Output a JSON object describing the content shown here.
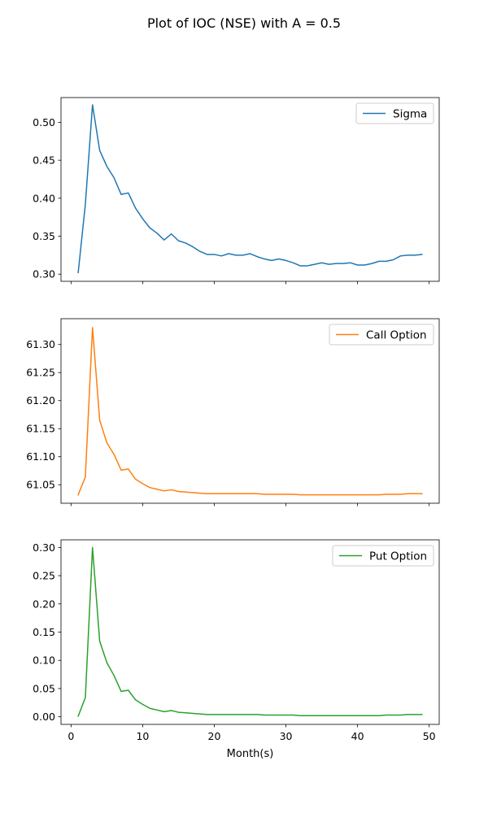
{
  "figure": {
    "title": "Plot of IOC (NSE) with A = 0.5",
    "xlabel": "Month(s)"
  },
  "chart_data": [
    {
      "type": "line",
      "title": "",
      "xlabel": "",
      "ylabel": "",
      "xlim": [
        -1.4,
        51.4
      ],
      "ylim": [
        0.2906,
        0.5326
      ],
      "xticks": [
        0,
        10,
        20,
        30,
        40,
        50
      ],
      "show_xtick_labels": false,
      "yticks": [
        0.3,
        0.35,
        0.4,
        0.45,
        0.5
      ],
      "ytick_labels": [
        "0.30",
        "0.35",
        "0.40",
        "0.45",
        "0.50"
      ],
      "grid": false,
      "legend": "top-right",
      "series": [
        {
          "name": "Sigma",
          "color": "#1f77b4",
          "x": [
            1,
            2,
            3,
            4,
            5,
            6,
            7,
            8,
            9,
            10,
            11,
            12,
            13,
            14,
            15,
            16,
            17,
            18,
            19,
            20,
            21,
            22,
            23,
            24,
            25,
            26,
            27,
            28,
            29,
            30,
            31,
            32,
            33,
            34,
            35,
            36,
            37,
            38,
            39,
            40,
            41,
            42,
            43,
            44,
            45,
            46,
            47,
            48,
            49
          ],
          "values": [
            0.302,
            0.392,
            0.523,
            0.463,
            0.442,
            0.427,
            0.405,
            0.407,
            0.387,
            0.373,
            0.361,
            0.354,
            0.345,
            0.353,
            0.344,
            0.341,
            0.336,
            0.33,
            0.326,
            0.326,
            0.324,
            0.327,
            0.325,
            0.325,
            0.327,
            0.323,
            0.32,
            0.318,
            0.32,
            0.318,
            0.315,
            0.311,
            0.311,
            0.313,
            0.315,
            0.313,
            0.314,
            0.314,
            0.315,
            0.312,
            0.312,
            0.314,
            0.317,
            0.317,
            0.319,
            0.324,
            0.325,
            0.325,
            0.326
          ]
        }
      ]
    },
    {
      "type": "line",
      "title": "",
      "xlabel": "",
      "ylabel": "",
      "xlim": [
        -1.4,
        51.4
      ],
      "ylim": [
        61.017,
        61.346
      ],
      "xticks": [
        0,
        10,
        20,
        30,
        40,
        50
      ],
      "show_xtick_labels": false,
      "yticks": [
        61.05,
        61.1,
        61.15,
        61.2,
        61.25,
        61.3
      ],
      "ytick_labels": [
        "61.05",
        "61.10",
        "61.15",
        "61.20",
        "61.25",
        "61.30"
      ],
      "grid": false,
      "legend": "top-right",
      "series": [
        {
          "name": "Call Option",
          "color": "#ff7f0e",
          "x": [
            1,
            2,
            3,
            4,
            5,
            6,
            7,
            8,
            9,
            10,
            11,
            12,
            13,
            14,
            15,
            16,
            17,
            18,
            19,
            20,
            21,
            22,
            23,
            24,
            25,
            26,
            27,
            28,
            29,
            30,
            31,
            32,
            33,
            34,
            35,
            36,
            37,
            38,
            39,
            40,
            41,
            42,
            43,
            44,
            45,
            46,
            47,
            48,
            49
          ],
          "values": [
            61.032,
            61.064,
            61.33,
            61.165,
            61.125,
            61.104,
            61.076,
            61.078,
            61.06,
            61.052,
            61.045,
            61.042,
            61.039,
            61.041,
            61.038,
            61.037,
            61.036,
            61.035,
            61.034,
            61.034,
            61.034,
            61.034,
            61.034,
            61.034,
            61.034,
            61.034,
            61.033,
            61.033,
            61.033,
            61.033,
            61.033,
            61.032,
            61.032,
            61.032,
            61.032,
            61.032,
            61.032,
            61.032,
            61.032,
            61.032,
            61.032,
            61.032,
            61.032,
            61.033,
            61.033,
            61.033,
            61.034,
            61.034,
            61.034
          ]
        }
      ]
    },
    {
      "type": "line",
      "title": "",
      "xlabel": "Month(s)",
      "ylabel": "",
      "xlim": [
        -1.4,
        51.4
      ],
      "ylim": [
        -0.0135,
        0.3135
      ],
      "xticks": [
        0,
        10,
        20,
        30,
        40,
        50
      ],
      "show_xtick_labels": true,
      "xtick_labels": [
        "0",
        "10",
        "20",
        "30",
        "40",
        "50"
      ],
      "yticks": [
        0.0,
        0.05,
        0.1,
        0.15,
        0.2,
        0.25,
        0.3
      ],
      "ytick_labels": [
        "0.00",
        "0.05",
        "0.10",
        "0.15",
        "0.20",
        "0.25",
        "0.30"
      ],
      "grid": false,
      "legend": "top-right",
      "series": [
        {
          "name": "Put Option",
          "color": "#2ca02c",
          "x": [
            1,
            2,
            3,
            4,
            5,
            6,
            7,
            8,
            9,
            10,
            11,
            12,
            13,
            14,
            15,
            16,
            17,
            18,
            19,
            20,
            21,
            22,
            23,
            24,
            25,
            26,
            27,
            28,
            29,
            30,
            31,
            32,
            33,
            34,
            35,
            36,
            37,
            38,
            39,
            40,
            41,
            42,
            43,
            44,
            45,
            46,
            47,
            48,
            49
          ],
          "values": [
            0.001,
            0.034,
            0.3,
            0.134,
            0.096,
            0.073,
            0.045,
            0.047,
            0.03,
            0.022,
            0.015,
            0.012,
            0.009,
            0.011,
            0.008,
            0.007,
            0.006,
            0.005,
            0.004,
            0.004,
            0.004,
            0.004,
            0.004,
            0.004,
            0.004,
            0.004,
            0.003,
            0.003,
            0.003,
            0.003,
            0.003,
            0.002,
            0.002,
            0.002,
            0.002,
            0.002,
            0.002,
            0.002,
            0.002,
            0.002,
            0.002,
            0.002,
            0.002,
            0.003,
            0.003,
            0.003,
            0.004,
            0.004,
            0.004
          ]
        }
      ]
    }
  ]
}
